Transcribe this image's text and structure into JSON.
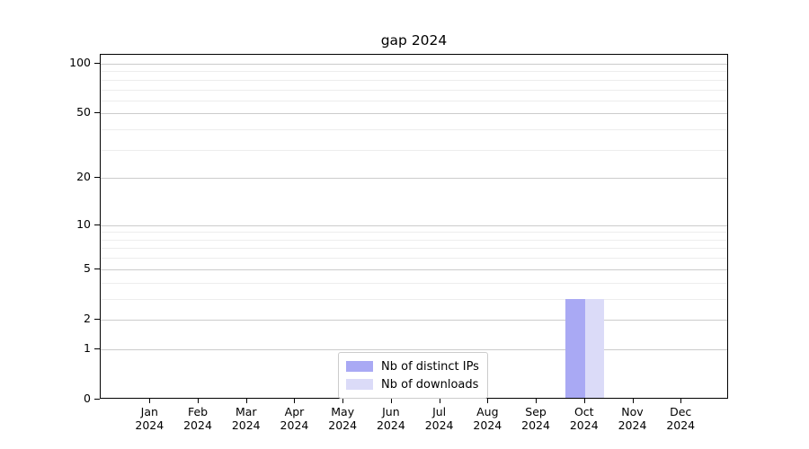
{
  "figure": {
    "background": "#ffffff"
  },
  "chart_data": {
    "type": "bar",
    "title": "gap 2024",
    "year": "2024",
    "categories": [
      "Jan",
      "Feb",
      "Mar",
      "Apr",
      "May",
      "Jun",
      "Jul",
      "Aug",
      "Sep",
      "Oct",
      "Nov",
      "Dec"
    ],
    "series": [
      {
        "name": "Nb of distinct IPs",
        "color": "#a9a9f4",
        "values": [
          0,
          0,
          0,
          0,
          0,
          0,
          0,
          0,
          0,
          3,
          0,
          0
        ]
      },
      {
        "name": "Nb of downloads",
        "color": "#dbdbf8",
        "values": [
          0,
          0,
          0,
          0,
          0,
          0,
          0,
          0,
          0,
          3,
          0,
          0
        ]
      }
    ],
    "xlabel": "",
    "ylabel": "",
    "y_scale": "log1p",
    "y_ticks": [
      0,
      1,
      2,
      5,
      10,
      20,
      50,
      100
    ],
    "y_minor_ticks": [
      3,
      4,
      6,
      7,
      8,
      9,
      30,
      40,
      60,
      70,
      80,
      90
    ],
    "ylim": [
      0,
      113
    ],
    "grid": true,
    "legend_position": "lower center",
    "colors": {
      "spine": "#000000",
      "major_grid": "#cccccc",
      "minor_grid": "#ededed",
      "legend_border": "#cccccc",
      "text": "#000000"
    }
  }
}
